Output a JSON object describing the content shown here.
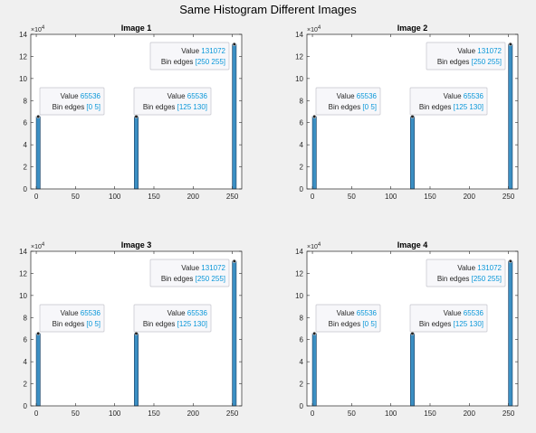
{
  "figure_title": "Same Histogram Different Images",
  "chart_data": [
    {
      "type": "bar",
      "title": "Image 1",
      "xlim": [
        -7,
        262
      ],
      "ylim": [
        0,
        140000
      ],
      "xticks": [
        0,
        50,
        100,
        150,
        200,
        250
      ],
      "yticks": [
        0,
        2,
        4,
        6,
        8,
        10,
        12,
        14
      ],
      "y_exponent": "×10^4",
      "y_exp_base": "×10",
      "y_exp_power": "4",
      "bins": [
        {
          "edges": [
            0,
            5
          ],
          "value": 65536
        },
        {
          "edges": [
            125,
            130
          ],
          "value": 65536
        },
        {
          "edges": [
            250,
            255
          ],
          "value": 131072
        }
      ],
      "datatips": [
        {
          "value_label": "Value",
          "value": "65536",
          "edges_label": "Bin edges",
          "edges": "[0 5]"
        },
        {
          "value_label": "Value",
          "value": "65536",
          "edges_label": "Bin edges",
          "edges": "[125 130]"
        },
        {
          "value_label": "Value",
          "value": "131072",
          "edges_label": "Bin edges",
          "edges": "[250 255]"
        }
      ],
      "bar_color": "#3b8fc3",
      "grid": false
    },
    {
      "type": "bar",
      "title": "Image 2",
      "xlim": [
        -7,
        262
      ],
      "ylim": [
        0,
        140000
      ],
      "xticks": [
        0,
        50,
        100,
        150,
        200,
        250
      ],
      "yticks": [
        0,
        2,
        4,
        6,
        8,
        10,
        12,
        14
      ],
      "y_exponent": "×10^4",
      "y_exp_base": "×10",
      "y_exp_power": "4",
      "bins": [
        {
          "edges": [
            0,
            5
          ],
          "value": 65536
        },
        {
          "edges": [
            125,
            130
          ],
          "value": 65536
        },
        {
          "edges": [
            250,
            255
          ],
          "value": 131072
        }
      ],
      "datatips": [
        {
          "value_label": "Value",
          "value": "65536",
          "edges_label": "Bin edges",
          "edges": "[0 5]"
        },
        {
          "value_label": "Value",
          "value": "65536",
          "edges_label": "Bin edges",
          "edges": "[125 130]"
        },
        {
          "value_label": "Value",
          "value": "131072",
          "edges_label": "Bin edges",
          "edges": "[250 255]"
        }
      ],
      "bar_color": "#3b8fc3",
      "grid": false
    },
    {
      "type": "bar",
      "title": "Image 3",
      "xlim": [
        -7,
        262
      ],
      "ylim": [
        0,
        140000
      ],
      "xticks": [
        0,
        50,
        100,
        150,
        200,
        250
      ],
      "yticks": [
        0,
        2,
        4,
        6,
        8,
        10,
        12,
        14
      ],
      "y_exponent": "×10^4",
      "y_exp_base": "×10",
      "y_exp_power": "4",
      "bins": [
        {
          "edges": [
            0,
            5
          ],
          "value": 65536
        },
        {
          "edges": [
            125,
            130
          ],
          "value": 65536
        },
        {
          "edges": [
            250,
            255
          ],
          "value": 131072
        }
      ],
      "datatips": [
        {
          "value_label": "Value",
          "value": "65536",
          "edges_label": "Bin edges",
          "edges": "[0 5]"
        },
        {
          "value_label": "Value",
          "value": "65536",
          "edges_label": "Bin edges",
          "edges": "[125 130]"
        },
        {
          "value_label": "Value",
          "value": "131072",
          "edges_label": "Bin edges",
          "edges": "[250 255]"
        }
      ],
      "bar_color": "#3b8fc3",
      "grid": false
    },
    {
      "type": "bar",
      "title": "Image 4",
      "xlim": [
        -7,
        262
      ],
      "ylim": [
        0,
        140000
      ],
      "xticks": [
        0,
        50,
        100,
        150,
        200,
        250
      ],
      "yticks": [
        0,
        2,
        4,
        6,
        8,
        10,
        12,
        14
      ],
      "y_exponent": "×10^4",
      "y_exp_base": "×10",
      "y_exp_power": "4",
      "bins": [
        {
          "edges": [
            0,
            5
          ],
          "value": 65536
        },
        {
          "edges": [
            125,
            130
          ],
          "value": 65536
        },
        {
          "edges": [
            250,
            255
          ],
          "value": 131072
        }
      ],
      "datatips": [
        {
          "value_label": "Value",
          "value": "65536",
          "edges_label": "Bin edges",
          "edges": "[0 5]"
        },
        {
          "value_label": "Value",
          "value": "65536",
          "edges_label": "Bin edges",
          "edges": "[125 130]"
        },
        {
          "value_label": "Value",
          "value": "131072",
          "edges_label": "Bin edges",
          "edges": "[250 255]"
        }
      ],
      "bar_color": "#3b8fc3",
      "grid": false
    }
  ]
}
